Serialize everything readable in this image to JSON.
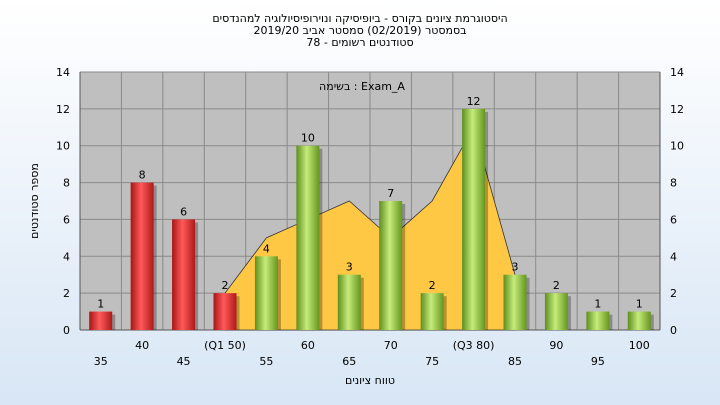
{
  "chart_data": {
    "type": "bar",
    "title_lines": [
      "היסטוגרמת ציונים בקורס - ביופיסיקה ונוירופיסיולוגיה למהנדסים",
      "בסמסטר  (02/2019)  סמסטר אביב 2019/20",
      "סטודנטים רשומים - 78"
    ],
    "annotation": "בשימה : Exam_A",
    "xlabel": "טווח ציונים",
    "ylabel": "מספר סטודנטים",
    "ylim": [
      0,
      14
    ],
    "yticks": [
      0,
      2,
      4,
      6,
      8,
      10,
      12,
      14
    ],
    "grid": true,
    "categories": [
      "35",
      "40",
      "45",
      "(Q1 50)",
      "55",
      "60",
      "65",
      "70",
      "75",
      "(Q3 80)",
      "85",
      "90",
      "95",
      "100"
    ],
    "values": [
      1,
      8,
      6,
      2,
      4,
      10,
      3,
      7,
      2,
      12,
      3,
      2,
      1,
      1
    ],
    "bar_groups": [
      "fail",
      "fail",
      "fail",
      "fail",
      "pass",
      "pass",
      "pass",
      "pass",
      "pass",
      "pass",
      "pass",
      "pass",
      "pass",
      "pass"
    ],
    "area_values": [
      null,
      null,
      null,
      2,
      5,
      6,
      7,
      5,
      7,
      11,
      3,
      null,
      null,
      null
    ],
    "colors": {
      "fail": "#e23030",
      "pass": "#8cc43a",
      "area": "#ffc844",
      "plot_bg": "#bfbfbf",
      "grid": "#8a8a8a"
    }
  }
}
